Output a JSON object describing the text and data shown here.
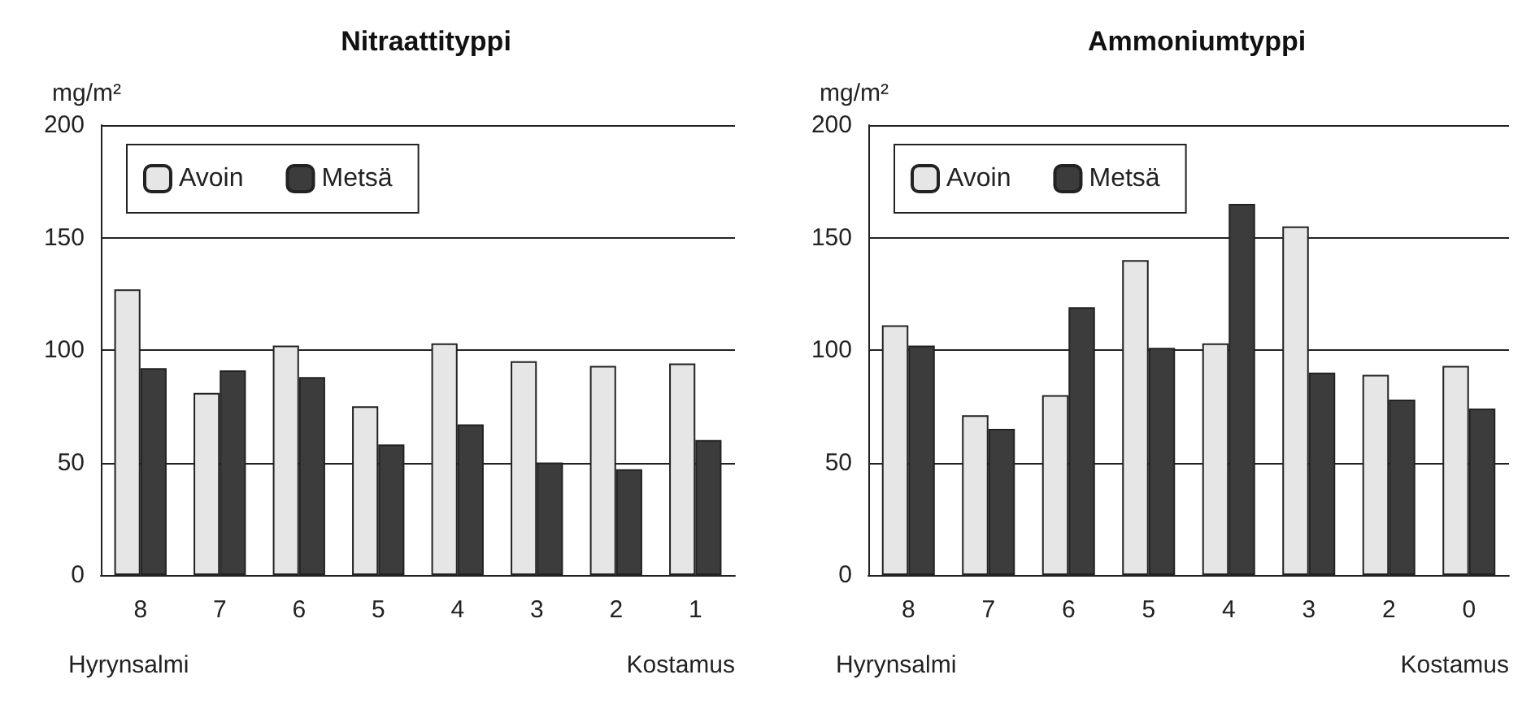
{
  "chart_data": [
    {
      "type": "bar",
      "title": "Nitraattityppi",
      "ylabel": "mg/m²",
      "categories": [
        "8",
        "7",
        "6",
        "5",
        "4",
        "3",
        "2",
        "1"
      ],
      "series": [
        {
          "name": "Avoin",
          "color": "#e6e6e6",
          "values": [
            127,
            81,
            102,
            75,
            103,
            95,
            93,
            94
          ]
        },
        {
          "name": "Metsä",
          "color": "#3c3c3c",
          "values": [
            92,
            91,
            88,
            58,
            67,
            50,
            47,
            60
          ]
        }
      ],
      "ylim": [
        0,
        200
      ],
      "yticks": [
        0,
        50,
        100,
        150,
        200
      ],
      "grid": "y",
      "legend": "top left",
      "annotations": [
        "Hyrynsalmi",
        "Kostamus"
      ]
    },
    {
      "type": "bar",
      "title": "Ammoniumtyppi",
      "ylabel": "mg/m²",
      "categories": [
        "8",
        "7",
        "6",
        "5",
        "4",
        "3",
        "2",
        "0"
      ],
      "series": [
        {
          "name": "Avoin",
          "color": "#e6e6e6",
          "values": [
            111,
            71,
            80,
            140,
            103,
            155,
            89,
            93
          ]
        },
        {
          "name": "Metsä",
          "color": "#3c3c3c",
          "values": [
            102,
            65,
            119,
            101,
            165,
            90,
            78,
            74
          ]
        }
      ],
      "ylim": [
        0,
        200
      ],
      "yticks": [
        0,
        50,
        100,
        150,
        200
      ],
      "grid": "y",
      "legend": "top left",
      "annotations": [
        "Hyrynsalmi",
        "Kostamus"
      ]
    }
  ]
}
